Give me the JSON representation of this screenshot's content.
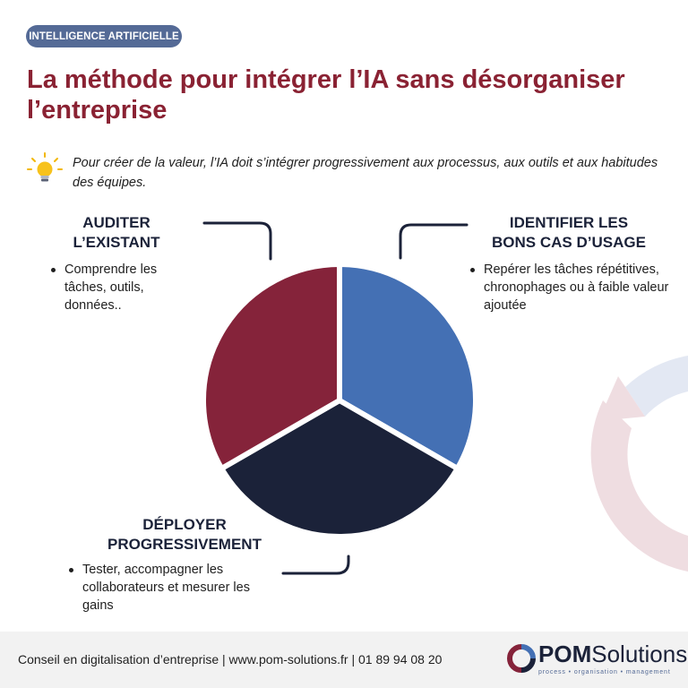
{
  "badge": "INTELLIGENCE ARTIFICIELLE",
  "title": "La méthode pour intégrer l’IA sans désorganiser l’entreprise",
  "intro": "Pour créer de la valeur, l’IA doit s’intégrer progressivement aux processus, aux outils et aux habitudes des équipes.",
  "icons": {
    "intro": "lightbulb-icon",
    "logo": "pom-ring-logo-icon"
  },
  "colors": {
    "red": "#85233a",
    "blue": "#4470b4",
    "navy": "#1b2239",
    "badge": "#546a96"
  },
  "pie": {
    "slices": [
      {
        "name": "identifier",
        "value": 1,
        "color": "#4470b4"
      },
      {
        "name": "deployer",
        "value": 1,
        "color": "#1b2239"
      },
      {
        "name": "auditer",
        "value": 1,
        "color": "#85233a"
      }
    ]
  },
  "sections": {
    "auditer": {
      "title_lines": [
        "AUDITER",
        "L’EXISTANT"
      ],
      "items": [
        "Comprendre les tâches, outils, données.."
      ]
    },
    "identifier": {
      "title_lines": [
        "IDENTIFIER LES",
        "BONS CAS D’USAGE"
      ],
      "items": [
        "Repérer les tâches répétitives, chronophages ou à faible valeur ajoutée"
      ]
    },
    "deployer": {
      "title_lines": [
        "DÉPLOYER",
        "PROGRESSIVEMENT"
      ],
      "items": [
        "Tester, accompagner les collaborateurs et mesurer les gains"
      ]
    }
  },
  "footer": {
    "text": "Conseil en digitalisation d’entreprise | www.pom-solutions.fr | 01 89 94 08 20",
    "logo_strong": "POM",
    "logo_light": "Solutions",
    "logo_tagline": "process • organisation • management"
  }
}
